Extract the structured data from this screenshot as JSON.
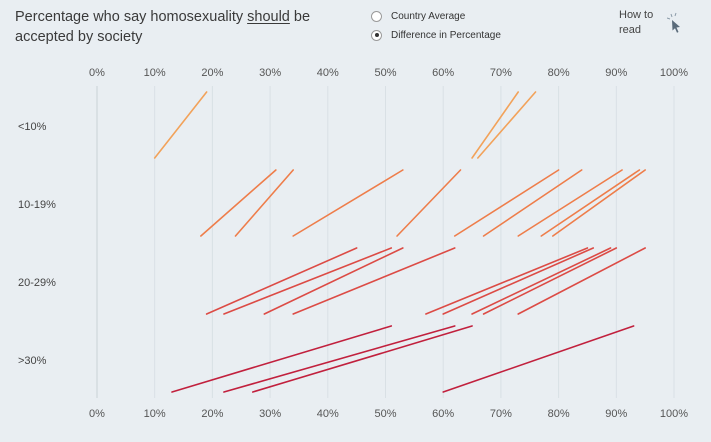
{
  "title": {
    "line1_pre": "Percentage who say homosexuality ",
    "emphasis": "should",
    "line1_post": " be",
    "line2": "accepted by society"
  },
  "controls": {
    "options": [
      {
        "label": "Country Average",
        "selected": false
      },
      {
        "label": "Difference in Percentage",
        "selected": true
      }
    ],
    "how_to_read": "How to read"
  },
  "chart_data": {
    "type": "slope",
    "x_ticks": [
      "0%",
      "10%",
      "20%",
      "30%",
      "40%",
      "50%",
      "60%",
      "70%",
      "80%",
      "90%",
      "100%"
    ],
    "xlim": [
      0,
      100
    ],
    "groups": [
      {
        "label": "<10%",
        "color": "#f2a25a",
        "lines": [
          [
            10,
            19
          ],
          [
            65,
            73
          ],
          [
            66,
            76
          ]
        ]
      },
      {
        "label": "10-19%",
        "color": "#ee7d4a",
        "lines": [
          [
            18,
            31
          ],
          [
            24,
            34
          ],
          [
            34,
            53
          ],
          [
            52,
            63
          ],
          [
            62,
            80
          ],
          [
            67,
            84
          ],
          [
            73,
            91
          ],
          [
            77,
            94
          ],
          [
            79,
            95
          ]
        ]
      },
      {
        "label": "20-29%",
        "color": "#dc4b45",
        "lines": [
          [
            19,
            45
          ],
          [
            22,
            51
          ],
          [
            29,
            53
          ],
          [
            34,
            62
          ],
          [
            57,
            85
          ],
          [
            60,
            86
          ],
          [
            65,
            89
          ],
          [
            67,
            90
          ],
          [
            73,
            95
          ]
        ]
      },
      {
        "label": ">30%",
        "color": "#c1203d",
        "lines": [
          [
            13,
            51
          ],
          [
            22,
            62
          ],
          [
            27,
            65
          ],
          [
            60,
            93
          ]
        ]
      }
    ]
  }
}
